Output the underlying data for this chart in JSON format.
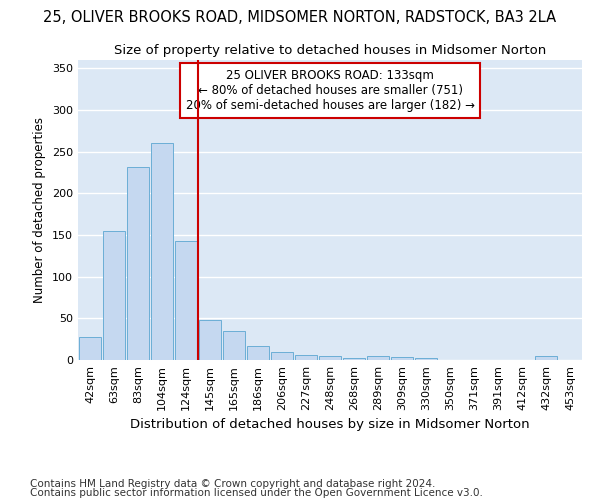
{
  "title": "25, OLIVER BROOKS ROAD, MIDSOMER NORTON, RADSTOCK, BA3 2LA",
  "subtitle": "Size of property relative to detached houses in Midsomer Norton",
  "xlabel": "Distribution of detached houses by size in Midsomer Norton",
  "ylabel": "Number of detached properties",
  "footer_line1": "Contains HM Land Registry data © Crown copyright and database right 2024.",
  "footer_line2": "Contains public sector information licensed under the Open Government Licence v3.0.",
  "categories": [
    "42sqm",
    "63sqm",
    "83sqm",
    "104sqm",
    "124sqm",
    "145sqm",
    "165sqm",
    "186sqm",
    "206sqm",
    "227sqm",
    "248sqm",
    "268sqm",
    "289sqm",
    "309sqm",
    "330sqm",
    "350sqm",
    "371sqm",
    "391sqm",
    "412sqm",
    "432sqm",
    "453sqm"
  ],
  "values": [
    28,
    155,
    232,
    260,
    143,
    48,
    35,
    17,
    10,
    6,
    5,
    3,
    5,
    4,
    2,
    0,
    0,
    0,
    0,
    5,
    0
  ],
  "bar_color": "#c5d8f0",
  "bar_edge_color": "#6baed6",
  "vline_x_idx": 4,
  "vline_color": "#cc0000",
  "annotation_text": "25 OLIVER BROOKS ROAD: 133sqm\n← 80% of detached houses are smaller (751)\n20% of semi-detached houses are larger (182) →",
  "ylim": [
    0,
    360
  ],
  "yticks": [
    0,
    50,
    100,
    150,
    200,
    250,
    300,
    350
  ],
  "background_color": "#dce8f5",
  "grid_color": "#ffffff",
  "fig_bg_color": "#ffffff",
  "title_fontsize": 10.5,
  "subtitle_fontsize": 9.5,
  "xlabel_fontsize": 9.5,
  "ylabel_fontsize": 8.5,
  "tick_fontsize": 8,
  "annot_fontsize": 8.5,
  "footer_fontsize": 7.5
}
